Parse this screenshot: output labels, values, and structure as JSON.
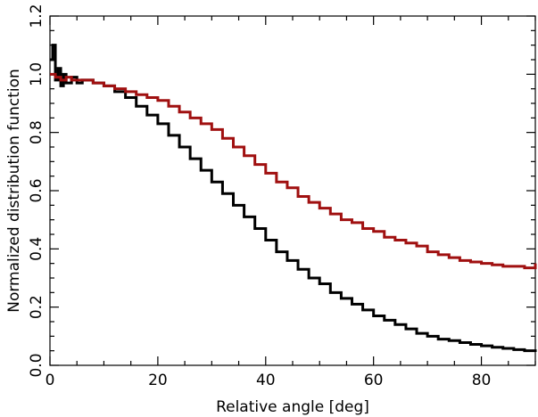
{
  "chart_data": {
    "type": "line",
    "title": "",
    "xlabel": "Relative angle [deg]",
    "ylabel": "Normalized distribution function",
    "xlim": [
      0,
      90
    ],
    "ylim": [
      0.0,
      1.2
    ],
    "x_ticks": [
      0,
      20,
      40,
      60,
      80
    ],
    "x_tick_labels": [
      "0",
      "20",
      "40",
      "60",
      "80"
    ],
    "y_ticks": [
      0.0,
      0.2,
      0.4,
      0.6,
      0.8,
      1.0,
      1.2
    ],
    "y_tick_labels": [
      "0.0",
      "0.2",
      "0.4",
      "0.6",
      "0.8",
      "1.0",
      "1.2"
    ],
    "grid": false,
    "legend": "none",
    "step": true,
    "series": [
      {
        "color": "#000000",
        "x": [
          0,
          0.5,
          1,
          1.5,
          2,
          2.5,
          3,
          4,
          5,
          6,
          8,
          10,
          12,
          14,
          16,
          18,
          20,
          22,
          24,
          26,
          28,
          30,
          32,
          34,
          36,
          38,
          40,
          42,
          44,
          46,
          48,
          50,
          52,
          54,
          56,
          58,
          60,
          62,
          64,
          66,
          68,
          70,
          72,
          74,
          76,
          78,
          80,
          82,
          84,
          86,
          88,
          90
        ],
        "values": [
          1.05,
          1.1,
          0.98,
          1.02,
          0.96,
          1.0,
          0.97,
          0.99,
          0.97,
          0.98,
          0.97,
          0.96,
          0.94,
          0.92,
          0.89,
          0.86,
          0.83,
          0.79,
          0.75,
          0.71,
          0.67,
          0.63,
          0.59,
          0.55,
          0.51,
          0.47,
          0.43,
          0.39,
          0.36,
          0.33,
          0.3,
          0.28,
          0.25,
          0.23,
          0.21,
          0.19,
          0.17,
          0.155,
          0.14,
          0.125,
          0.11,
          0.1,
          0.09,
          0.085,
          0.078,
          0.072,
          0.067,
          0.062,
          0.058,
          0.054,
          0.05,
          0.046
        ]
      },
      {
        "color": "#a01010",
        "x": [
          0,
          1,
          2,
          3,
          4,
          6,
          8,
          10,
          12,
          14,
          16,
          18,
          20,
          22,
          24,
          26,
          28,
          30,
          32,
          34,
          36,
          38,
          40,
          42,
          44,
          46,
          48,
          50,
          52,
          54,
          56,
          58,
          60,
          62,
          64,
          66,
          68,
          70,
          72,
          74,
          76,
          78,
          80,
          82,
          84,
          86,
          88,
          90
        ],
        "values": [
          1.0,
          0.99,
          0.98,
          0.99,
          0.98,
          0.98,
          0.97,
          0.96,
          0.95,
          0.94,
          0.93,
          0.92,
          0.91,
          0.89,
          0.87,
          0.85,
          0.83,
          0.81,
          0.78,
          0.75,
          0.72,
          0.69,
          0.66,
          0.63,
          0.61,
          0.58,
          0.56,
          0.54,
          0.52,
          0.5,
          0.49,
          0.47,
          0.46,
          0.44,
          0.43,
          0.42,
          0.41,
          0.39,
          0.38,
          0.37,
          0.36,
          0.355,
          0.35,
          0.345,
          0.34,
          0.34,
          0.335,
          0.35
        ]
      }
    ]
  }
}
